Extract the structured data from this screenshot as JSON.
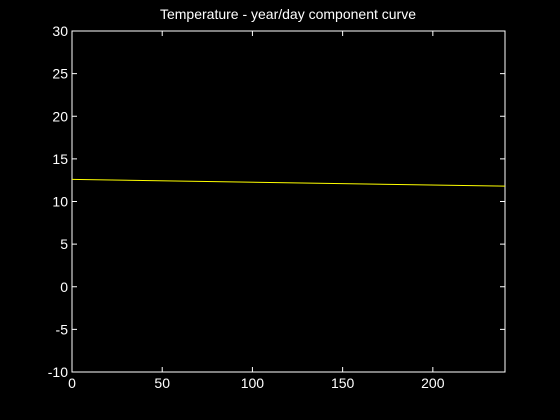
{
  "chart_data": {
    "type": "line",
    "title": "Temperature - year/day component curve",
    "xlabel": "",
    "ylabel": "",
    "xlim": [
      0,
      240
    ],
    "ylim": [
      -10,
      30
    ],
    "xticks": [
      0,
      50,
      100,
      150,
      200
    ],
    "yticks": [
      -10,
      -5,
      0,
      5,
      10,
      15,
      20,
      25,
      30
    ],
    "grid": false,
    "background_color": "#000000",
    "axes_color": "#ffffff",
    "series": [
      {
        "color": "#ffff00",
        "x": [
          0,
          240
        ],
        "y": [
          12.6,
          11.8
        ]
      }
    ]
  }
}
